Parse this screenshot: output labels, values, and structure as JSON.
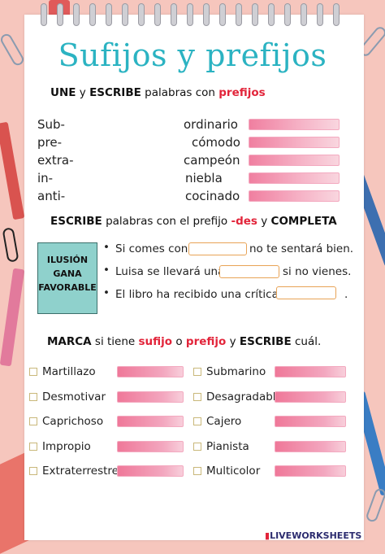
{
  "title": "Sufijos y prefijos",
  "section1": {
    "heading_parts": [
      "UNE",
      " y ",
      "ESCRIBE",
      " palabras con ",
      "prefijos"
    ],
    "prefixes": [
      "Sub-",
      "pre-",
      "extra-",
      "in-",
      "anti-"
    ],
    "words": [
      "ordinario",
      "cómodo",
      "campeón",
      "niebla",
      "cocinado"
    ]
  },
  "section2": {
    "heading_parts": [
      "ESCRIBE",
      " palabras con el prefijo ",
      "-des",
      " y ",
      "COMPLETA"
    ],
    "box_words": [
      "ILUSIÓN",
      "GANA",
      "FAVORABLE"
    ],
    "sentences": [
      {
        "before": "Si comes con",
        "after": "no te sentará bien."
      },
      {
        "before": "Luisa se llevará una",
        "after": "si no vienes."
      },
      {
        "before": "El libro ha recibido una crítica",
        "after": "."
      }
    ]
  },
  "section3": {
    "heading_parts": [
      "MARCA",
      " si tiene ",
      "sufijo",
      " o ",
      "prefijo",
      " y ",
      "ESCRIBE",
      " cuál."
    ],
    "left_items": [
      "Martillazo",
      "Desmotivar",
      "Caprichoso",
      "Impropio",
      "Extraterrestre"
    ],
    "right_items": [
      "Submarino",
      "Desagradable",
      "Cajero",
      "Pianista",
      "Multicolor"
    ]
  },
  "footer": "LIVEWORKSHEETS",
  "colors": {
    "title": "#2bb3c2",
    "accent_red": "#e2243a",
    "background": "#f6c6bd",
    "teal_box": "#8fd1cc"
  }
}
